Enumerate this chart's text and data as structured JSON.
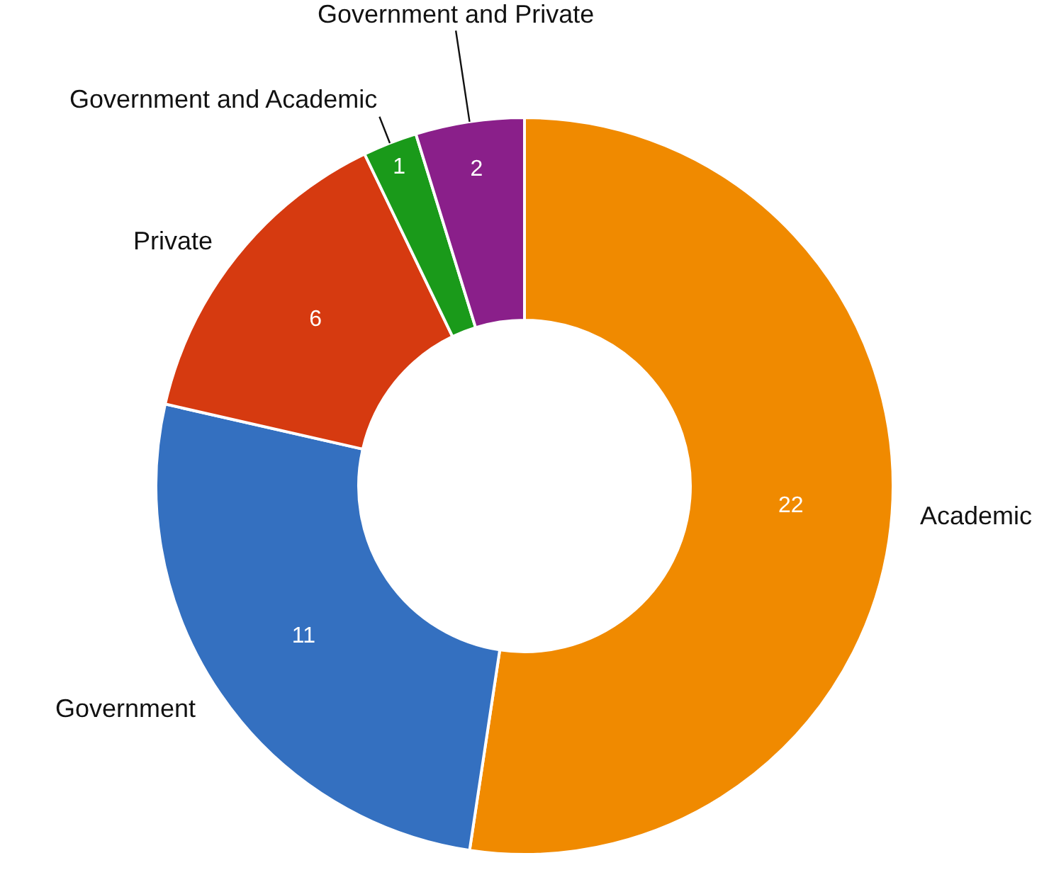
{
  "chart_data": {
    "type": "donut",
    "categories": [
      "Academic",
      "Government",
      "Private",
      "Government and Academic",
      "Government and Private"
    ],
    "values": [
      22,
      11,
      6,
      1,
      2
    ],
    "colors": [
      "#f08a00",
      "#3470c0",
      "#d63a10",
      "#1a9a1a",
      "#8a1f8a"
    ],
    "data_labels": true,
    "legend": false
  }
}
